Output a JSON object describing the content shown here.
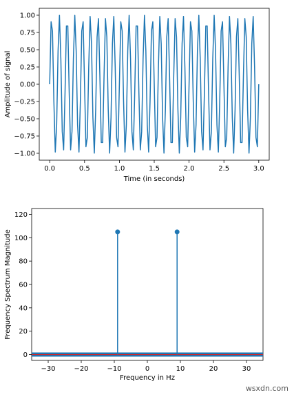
{
  "watermark": "wsxdn.com",
  "colors": {
    "line": "#1f77b4",
    "baseline": "#d62728",
    "axes": "#000000"
  },
  "chart_data": [
    {
      "type": "line",
      "title": "",
      "xlabel": "Time (in seconds)",
      "ylabel": "Amplitude of signal",
      "xlim": [
        -0.15,
        3.15
      ],
      "ylim": [
        -1.1,
        1.1
      ],
      "xticks": [
        0.0,
        0.5,
        1.0,
        1.5,
        2.0,
        2.5,
        3.0
      ],
      "xtick_labels": [
        "0.0",
        "0.5",
        "1.0",
        "1.5",
        "2.0",
        "2.5",
        "3.0"
      ],
      "yticks": [
        -1.0,
        -0.75,
        -0.5,
        -0.25,
        0.0,
        0.25,
        0.5,
        0.75,
        1.0
      ],
      "ytick_labels": [
        "−1.00",
        "−0.75",
        "−0.50",
        "−0.25",
        "0.00",
        "0.25",
        "0.50",
        "0.75",
        "1.00"
      ],
      "grid": false,
      "series": [
        {
          "function": "sin(2*pi*9*t)",
          "frequency_hz": 9,
          "t_start": 0.0,
          "t_end": 3.0,
          "sample_step": 0.02
        }
      ]
    },
    {
      "type": "stem",
      "title": "",
      "xlabel": "Frequency in Hz",
      "ylabel": "Frequency Spectrum Magnitude",
      "xlim": [
        -35,
        35
      ],
      "ylim": [
        -5,
        125
      ],
      "xticks": [
        -30,
        -20,
        -10,
        0,
        10,
        20,
        30
      ],
      "xtick_labels": [
        "−30",
        "−20",
        "−10",
        "0",
        "10",
        "20",
        "30"
      ],
      "yticks": [
        0,
        20,
        40,
        60,
        80,
        100,
        120
      ],
      "ytick_labels": [
        "0",
        "20",
        "40",
        "60",
        "80",
        "100",
        "120"
      ],
      "grid": false,
      "baseline": 0,
      "stems": [
        {
          "x": -9,
          "y": 105
        },
        {
          "x": 9,
          "y": 105
        }
      ]
    }
  ]
}
